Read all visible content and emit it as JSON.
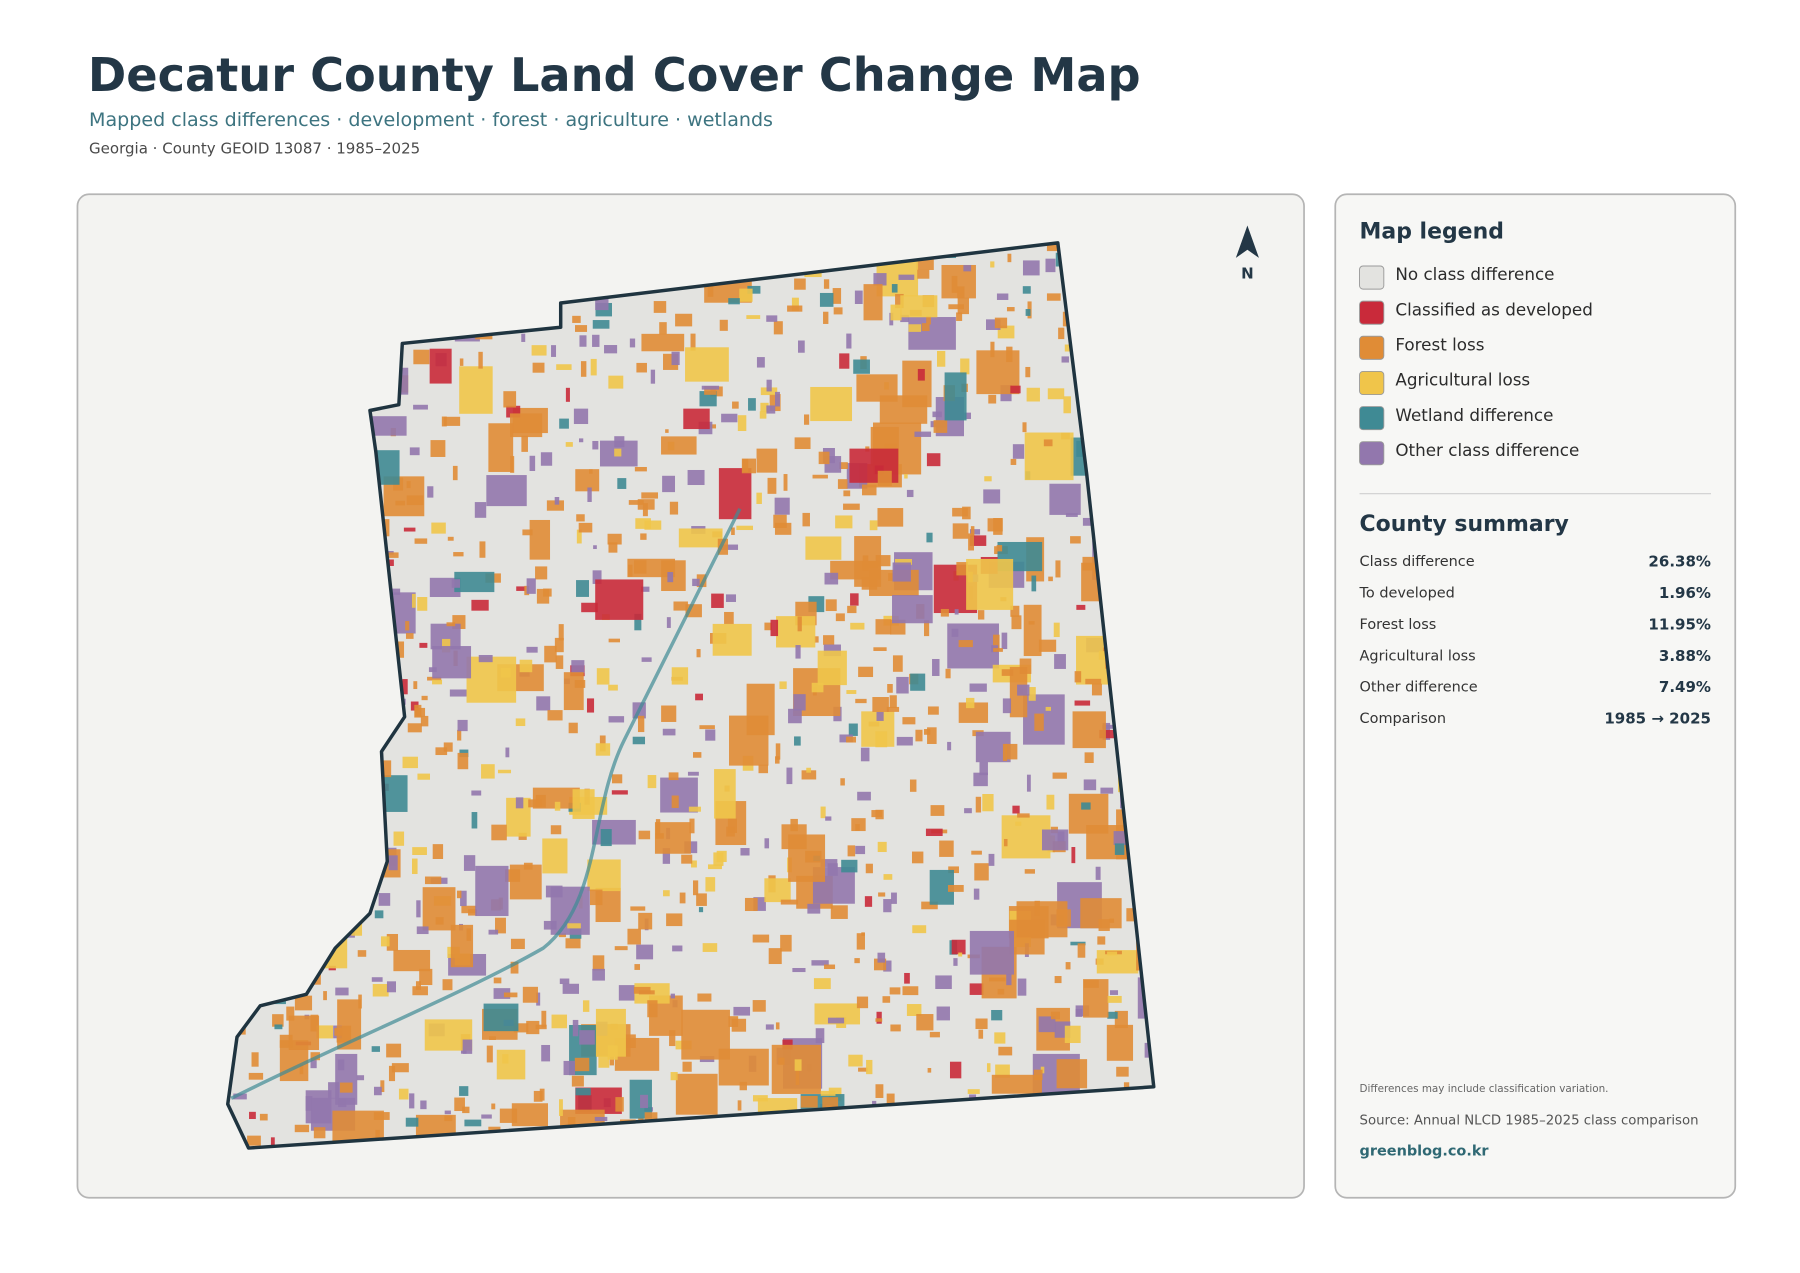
{
  "header": {
    "title": "Decatur County Land Cover Change Map",
    "subtitle": "Mapped class differences · development · forest · agriculture · wetlands",
    "meta": "Georgia · County GEOID 13087 · 1985–2025"
  },
  "north_label": "N",
  "legend": {
    "title": "Map legend",
    "items": [
      {
        "label": "No class difference",
        "color": "#e3e3e0"
      },
      {
        "label": "Classified as developed",
        "color": "#c92a3a"
      },
      {
        "label": "Forest loss",
        "color": "#e08c36"
      },
      {
        "label": "Agricultural loss",
        "color": "#f0c54a"
      },
      {
        "label": "Wetland difference",
        "color": "#3f8a94"
      },
      {
        "label": "Other class difference",
        "color": "#9277ad"
      }
    ]
  },
  "summary": {
    "title": "County summary",
    "rows": [
      {
        "label": "Class difference",
        "value": "26.38%"
      },
      {
        "label": "To developed",
        "value": "1.96%"
      },
      {
        "label": "Forest loss",
        "value": "11.95%"
      },
      {
        "label": "Agricultural loss",
        "value": "3.88%"
      },
      {
        "label": "Other difference",
        "value": "7.49%"
      },
      {
        "label": "Comparison",
        "value": "1985 → 2025"
      }
    ]
  },
  "footer": {
    "note": "Differences may include classification variation.",
    "source": "Source: Annual NLCD 1985–2025 class comparison",
    "credit": "greenblog.co.kr"
  }
}
